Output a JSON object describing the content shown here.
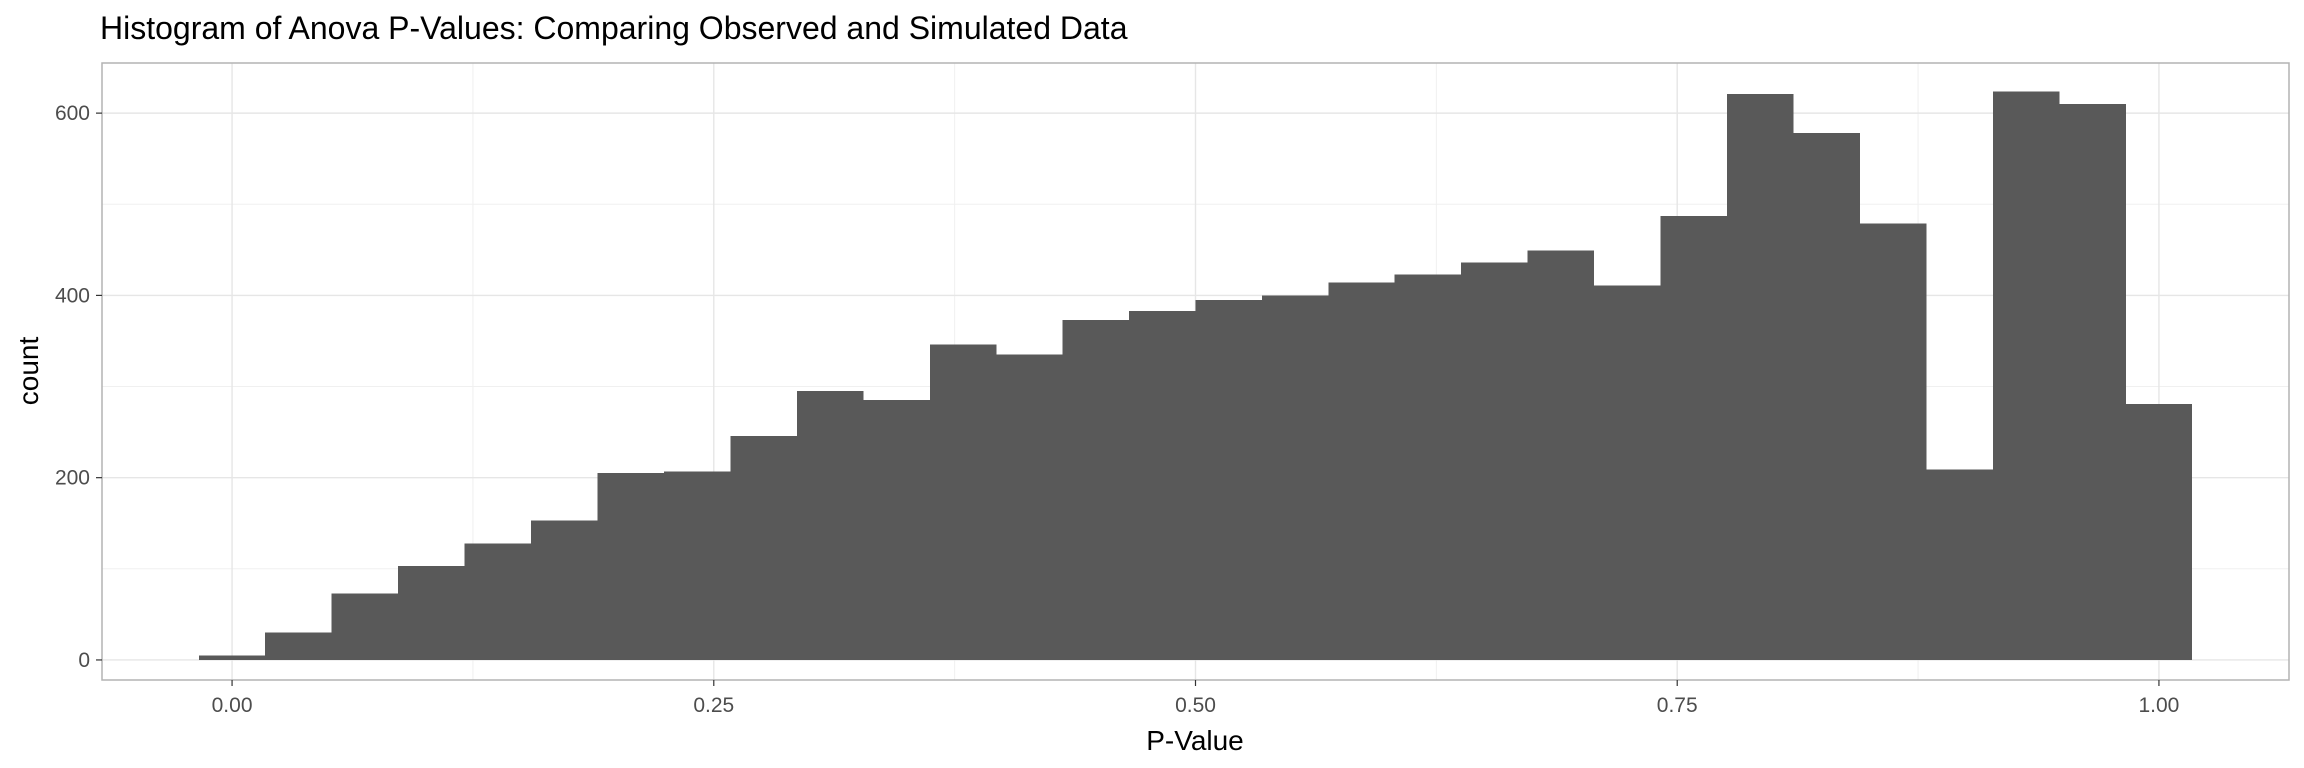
{
  "chart_data": {
    "type": "bar",
    "subtype": "histogram",
    "title": "Histogram of Anova P-Values: Comparing Observed and Simulated Data",
    "xlabel": "P-Value",
    "ylabel": "count",
    "xlim": [
      -0.0675,
      1.0675
    ],
    "ylim": [
      -22,
      655
    ],
    "x_ticks": [
      0.0,
      0.25,
      0.5,
      0.75,
      1.0
    ],
    "x_tick_labels": [
      "0.00",
      "0.25",
      "0.50",
      "0.75",
      "1.00"
    ],
    "y_ticks": [
      0,
      200,
      400,
      600
    ],
    "y_tick_labels": [
      "0",
      "200",
      "400",
      "600"
    ],
    "grid": true,
    "bar_color": "#595959",
    "bins": [
      {
        "start": -0.0172,
        "end": 0.0172,
        "count": 5
      },
      {
        "start": 0.0172,
        "end": 0.0517,
        "count": 30
      },
      {
        "start": 0.0517,
        "end": 0.0862,
        "count": 73
      },
      {
        "start": 0.0862,
        "end": 0.1207,
        "count": 103
      },
      {
        "start": 0.1207,
        "end": 0.1552,
        "count": 128
      },
      {
        "start": 0.1552,
        "end": 0.1897,
        "count": 153
      },
      {
        "start": 0.1897,
        "end": 0.2241,
        "count": 205
      },
      {
        "start": 0.2241,
        "end": 0.2586,
        "count": 207
      },
      {
        "start": 0.2586,
        "end": 0.2931,
        "count": 246
      },
      {
        "start": 0.2931,
        "end": 0.3276,
        "count": 295
      },
      {
        "start": 0.3276,
        "end": 0.3621,
        "count": 285
      },
      {
        "start": 0.3621,
        "end": 0.3966,
        "count": 346
      },
      {
        "start": 0.3966,
        "end": 0.431,
        "count": 335
      },
      {
        "start": 0.431,
        "end": 0.4655,
        "count": 373
      },
      {
        "start": 0.4655,
        "end": 0.5,
        "count": 383
      },
      {
        "start": 0.5,
        "end": 0.5345,
        "count": 395
      },
      {
        "start": 0.5345,
        "end": 0.569,
        "count": 400
      },
      {
        "start": 0.569,
        "end": 0.6034,
        "count": 414
      },
      {
        "start": 0.6034,
        "end": 0.6379,
        "count": 423
      },
      {
        "start": 0.6379,
        "end": 0.6724,
        "count": 436
      },
      {
        "start": 0.6724,
        "end": 0.7069,
        "count": 449
      },
      {
        "start": 0.7069,
        "end": 0.7414,
        "count": 411
      },
      {
        "start": 0.7414,
        "end": 0.7759,
        "count": 487
      },
      {
        "start": 0.7759,
        "end": 0.8103,
        "count": 621
      },
      {
        "start": 0.8103,
        "end": 0.8448,
        "count": 578
      },
      {
        "start": 0.8448,
        "end": 0.8793,
        "count": 479
      },
      {
        "start": 0.8793,
        "end": 0.9138,
        "count": 209
      },
      {
        "start": 0.9138,
        "end": 0.9483,
        "count": 624
      },
      {
        "start": 0.9483,
        "end": 0.9828,
        "count": 610
      },
      {
        "start": 0.9828,
        "end": 1.0172,
        "count": 281
      }
    ]
  }
}
